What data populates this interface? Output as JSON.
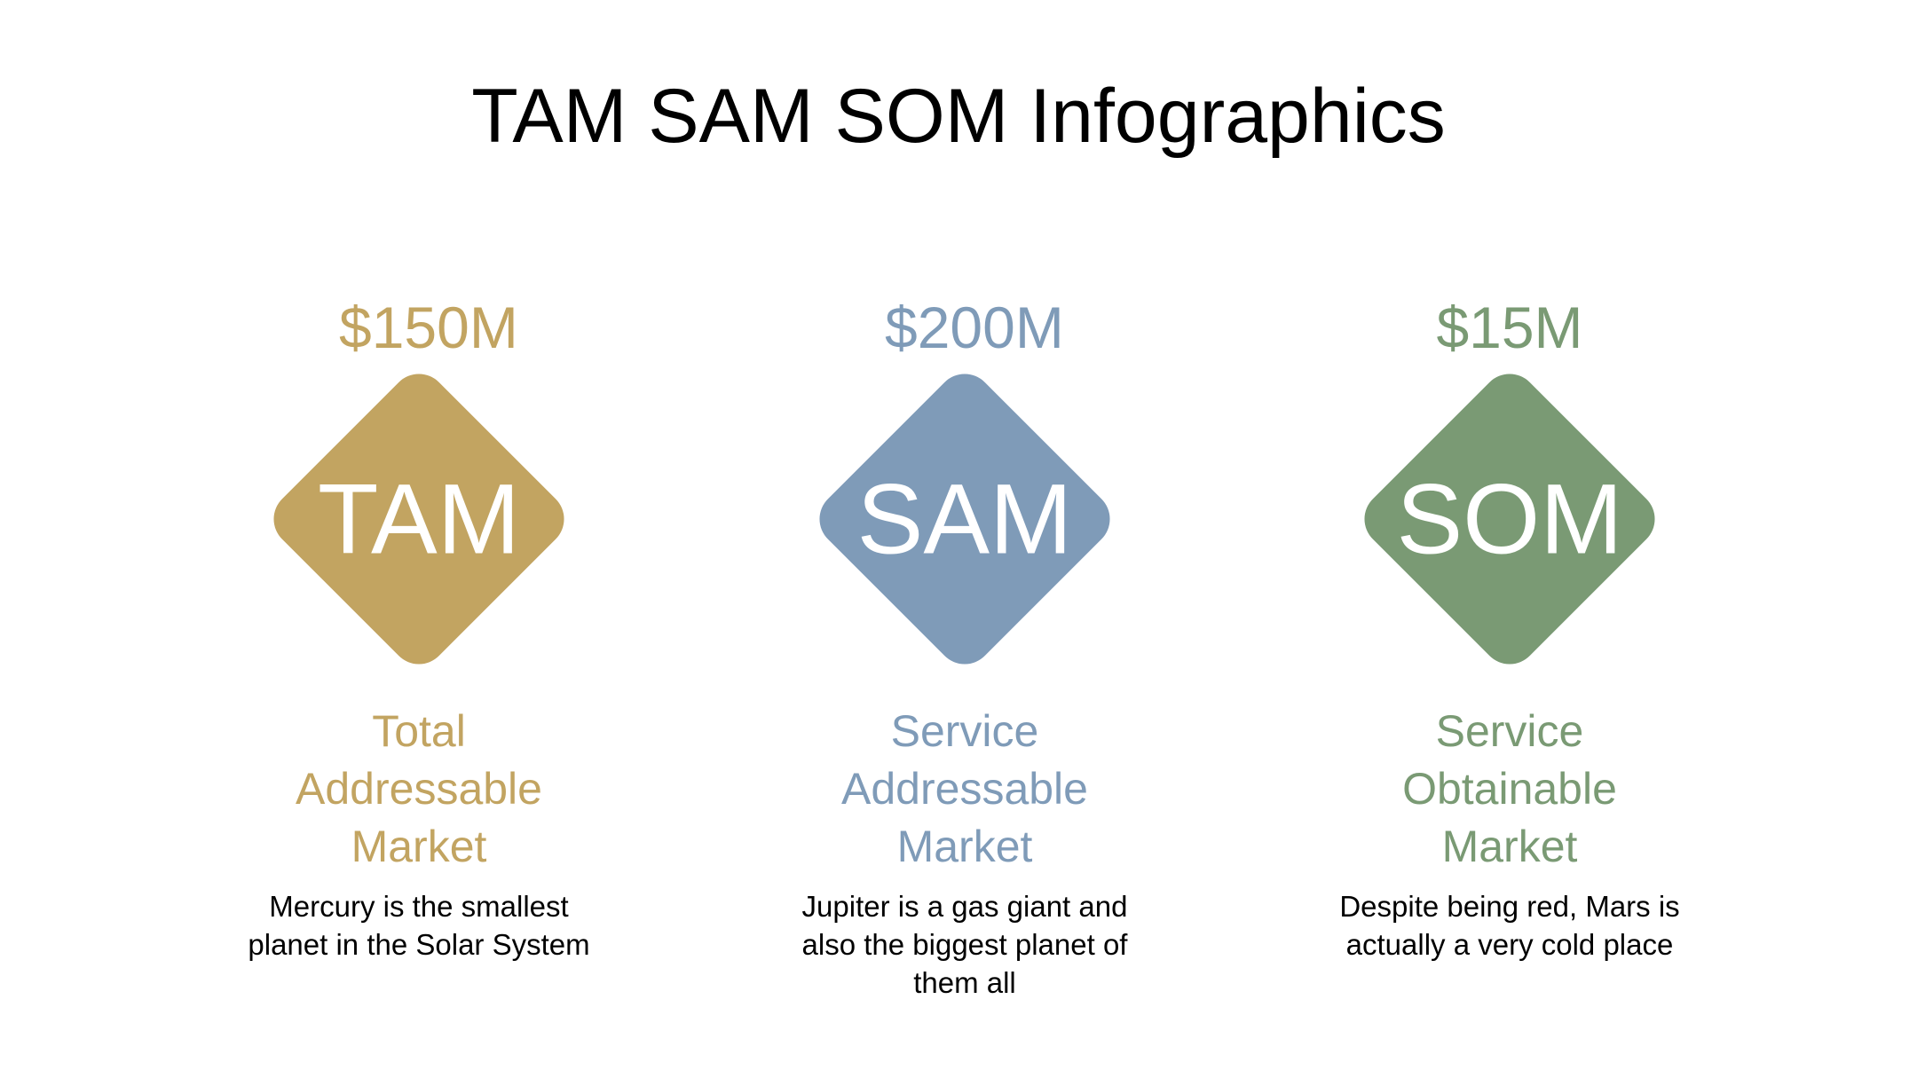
{
  "title": "TAM SAM SOM Infographics",
  "items": [
    {
      "value": "$150M",
      "abbr": "TAM",
      "name": "Total Addressable Market",
      "description": "Mercury is the smallest planet in the Solar System"
    },
    {
      "value": "$200M",
      "abbr": "SAM",
      "name": "Service Addressable Market",
      "description": "Jupiter is a gas giant and also the biggest planet of them all"
    },
    {
      "value": "$15M",
      "abbr": "SOM",
      "name": "Service Obtainable Market",
      "description": "Despite being red, Mars is actually a very cold place"
    }
  ]
}
